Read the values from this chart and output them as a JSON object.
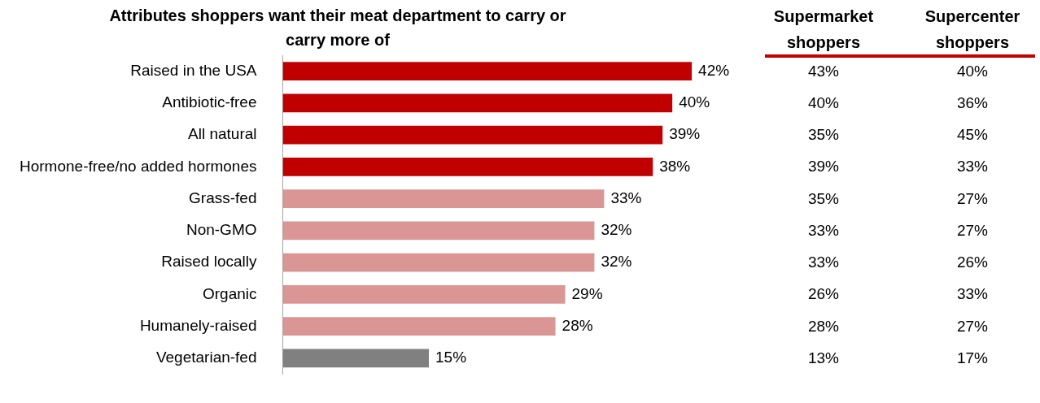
{
  "chart_data": [
    {
      "type": "bar",
      "orientation": "horizontal",
      "title": "Attributes shoppers want their meat department to carry or carry more of",
      "categories": [
        "Raised in the USA",
        "Antibiotic-free",
        "All natural",
        "Hormone-free/no added hormones",
        "Grass-fed",
        "Non-GMO",
        "Raised locally",
        "Organic",
        "Humanely-raised",
        "Vegetarian-fed"
      ],
      "colors": [
        "#c00000",
        "#c00000",
        "#c00000",
        "#c00000",
        "#da9694",
        "#da9694",
        "#da9694",
        "#da9694",
        "#da9694",
        "#808080"
      ],
      "values": [
        42,
        40,
        39,
        38,
        33,
        32,
        32,
        29,
        28,
        15
      ],
      "value_labels": [
        "42%",
        "40%",
        "39%",
        "38%",
        "33%",
        "32%",
        "32%",
        "29%",
        "28%",
        "15%"
      ]
    },
    {
      "type": "other",
      "title": "Supermarket shoppers",
      "values": [
        43,
        40,
        35,
        39,
        35,
        33,
        33,
        26,
        28,
        13
      ],
      "value_labels": [
        "43%",
        "40%",
        "35%",
        "39%",
        "35%",
        "33%",
        "33%",
        "26%",
        "28%",
        "13%"
      ]
    },
    {
      "type": "other",
      "title": "Supercenter shoppers",
      "values": [
        40,
        36,
        45,
        33,
        27,
        27,
        26,
        33,
        27,
        17
      ],
      "value_labels": [
        "40%",
        "36%",
        "45%",
        "33%",
        "27%",
        "27%",
        "26%",
        "33%",
        "27%",
        "17%"
      ]
    }
  ]
}
